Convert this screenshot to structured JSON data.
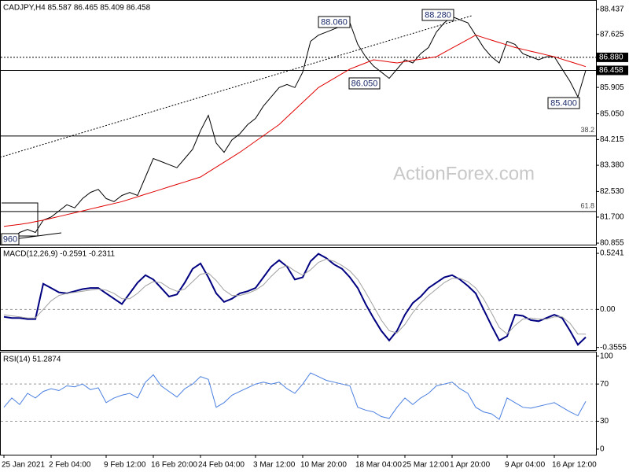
{
  "chart_data": [
    {
      "type": "line",
      "title": "CADJPY,H4  85.587 86.465 85.409 86.458",
      "watermark": "ActionForex.com",
      "categories": [
        "25 Jan 2021",
        null,
        null,
        null,
        null,
        null,
        "2 Feb 04:00",
        null,
        null,
        null,
        null,
        null,
        null,
        "9 Feb 12:00",
        null,
        null,
        null,
        null,
        null,
        "16 Feb 20:00",
        null,
        null,
        null,
        null,
        null,
        "24 Feb 04:00",
        null,
        null,
        null,
        null,
        null,
        null,
        "3 Mar 12:00",
        null,
        null,
        null,
        null,
        null,
        "10 Mar 20:00",
        null,
        null,
        null,
        null,
        null,
        null,
        "18 Mar 04:00",
        null,
        null,
        null,
        null,
        null,
        "25 Mar 12:00",
        null,
        null,
        null,
        null,
        null,
        "1 Apr 20:00",
        null,
        null,
        null,
        null,
        null,
        null,
        "9 Apr 04:00",
        null,
        null,
        null,
        null,
        null,
        "16 Apr 12:00",
        null,
        null,
        null,
        null
      ],
      "series": [
        {
          "color": "#000000",
          "values": [
            81.1,
            81.0,
            81.2,
            81.3,
            81.2,
            81.6,
            81.7,
            81.9,
            82.1,
            82.0,
            82.3,
            82.5,
            82.6,
            82.3,
            82.2,
            82.4,
            82.5,
            82.4,
            83.0,
            83.6,
            83.5,
            83.4,
            83.3,
            83.6,
            83.9,
            84.5,
            85.0,
            84.1,
            83.8,
            84.2,
            84.4,
            84.7,
            84.9,
            85.3,
            85.6,
            85.9,
            86.0,
            85.9,
            86.4,
            87.4,
            87.6,
            87.7,
            87.8,
            87.9,
            88.0,
            87.3,
            86.9,
            86.6,
            86.4,
            86.2,
            86.5,
            86.8,
            86.7,
            87.0,
            87.2,
            87.7,
            88.0,
            88.2,
            88.1,
            88.0,
            87.6,
            87.2,
            86.9,
            86.7,
            87.4,
            87.3,
            87.0,
            86.9,
            86.8,
            86.9,
            86.9,
            86.5,
            86.1,
            85.6,
            86.458
          ]
        },
        {
          "color": "#e00000",
          "values": [
            81.4,
            81.43,
            81.46,
            81.5,
            81.55,
            81.6,
            81.66,
            81.72,
            81.78,
            81.84,
            81.9,
            81.96,
            82.02,
            82.08,
            82.14,
            82.2,
            82.28,
            82.36,
            82.44,
            82.52,
            82.6,
            82.68,
            82.76,
            82.84,
            82.92,
            83.0,
            83.16,
            83.32,
            83.48,
            83.64,
            83.8,
            83.98,
            84.16,
            84.34,
            84.52,
            84.7,
            84.94,
            85.18,
            85.42,
            85.66,
            85.9,
            86.05,
            86.2,
            86.35,
            86.5,
            86.6,
            86.7,
            86.8,
            86.77,
            86.73,
            86.7,
            86.74,
            86.78,
            86.82,
            86.86,
            86.9,
            87.04,
            87.18,
            87.32,
            87.46,
            87.6,
            87.52,
            87.44,
            87.36,
            87.28,
            87.2,
            87.14,
            87.08,
            87.02,
            86.96,
            86.9,
            86.82,
            86.74,
            86.66,
            86.58
          ]
        }
      ],
      "ylim": [
        80.78,
        88.74
      ],
      "yticks": [
        88.437,
        87.625,
        85.905,
        {
          "value": 85.05,
          "label": "85.050"
        },
        84.215,
        {
          "value": 83.38,
          "label": "83.380"
        },
        {
          "value": 82.53,
          "label": "82.530"
        },
        {
          "value": 81.7,
          "label": "81.700"
        },
        80.855
      ],
      "grid": false,
      "levels": [
        {
          "value": 86.88,
          "label": "86.880",
          "style": "dotted",
          "label_box": true
        },
        {
          "value": 86.458,
          "label": "86.458",
          "style": "solid",
          "label_box": true
        },
        {
          "value": 84.33,
          "label": "38.2",
          "style": "solid",
          "label_box": false
        },
        {
          "value": 81.88,
          "label": "61.8",
          "style": "solid",
          "label_box": false
        }
      ],
      "annotations": [
        "88.060",
        "88.280",
        "86.050",
        "85.400",
        "960"
      ]
    },
    {
      "type": "line",
      "title": "MACD(12,26,9) -0.2591 -0.2311",
      "series": [
        {
          "color": "#000080",
          "values": [
            -0.07,
            -0.08,
            -0.08,
            -0.09,
            -0.09,
            0.24,
            0.2,
            0.16,
            0.15,
            0.17,
            0.19,
            0.2,
            0.2,
            0.15,
            0.1,
            0.05,
            0.15,
            0.25,
            0.32,
            0.28,
            0.2,
            0.12,
            0.14,
            0.25,
            0.38,
            0.43,
            0.3,
            0.15,
            0.07,
            0.1,
            0.15,
            0.17,
            0.2,
            0.3,
            0.4,
            0.46,
            0.4,
            0.28,
            0.3,
            0.45,
            0.52,
            0.48,
            0.42,
            0.38,
            0.3,
            0.2,
            0.05,
            -0.08,
            -0.2,
            -0.29,
            -0.2,
            -0.05,
            0.06,
            0.12,
            0.2,
            0.25,
            0.3,
            0.32,
            0.28,
            0.22,
            0.15,
            0.0,
            -0.15,
            -0.29,
            -0.25,
            -0.05,
            -0.06,
            -0.1,
            -0.11,
            -0.08,
            -0.05,
            -0.08,
            -0.2,
            -0.33,
            -0.2591
          ]
        },
        {
          "color": "#a0a0a0",
          "values": [
            -0.05,
            -0.06,
            -0.07,
            -0.08,
            -0.08,
            0.0,
            0.08,
            0.13,
            0.15,
            0.16,
            0.17,
            0.18,
            0.19,
            0.18,
            0.15,
            0.1,
            0.1,
            0.15,
            0.22,
            0.26,
            0.25,
            0.2,
            0.17,
            0.19,
            0.26,
            0.33,
            0.34,
            0.27,
            0.18,
            0.13,
            0.13,
            0.15,
            0.18,
            0.23,
            0.31,
            0.38,
            0.41,
            0.36,
            0.32,
            0.37,
            0.44,
            0.47,
            0.45,
            0.41,
            0.36,
            0.28,
            0.16,
            0.03,
            -0.1,
            -0.2,
            -0.22,
            -0.14,
            -0.03,
            0.06,
            0.13,
            0.19,
            0.25,
            0.29,
            0.29,
            0.26,
            0.2,
            0.1,
            -0.03,
            -0.17,
            -0.23,
            -0.15,
            -0.09,
            -0.08,
            -0.09,
            -0.09,
            -0.07,
            -0.07,
            -0.13,
            -0.23,
            -0.2311
          ]
        }
      ],
      "ylim": [
        -0.38,
        0.576
      ],
      "yticks": [
        0.5241,
        {
          "value": 0,
          "label": "0.00"
        },
        -0.3555
      ],
      "grid": true
    },
    {
      "type": "line",
      "title": "RSI(14) 51.2874",
      "series": [
        {
          "color": "#4a7fe0",
          "values": [
            45,
            55,
            48,
            60,
            55,
            62,
            65,
            63,
            68,
            67,
            70,
            64,
            66,
            50,
            55,
            58,
            60,
            55,
            72,
            80,
            68,
            62,
            56,
            65,
            70,
            78,
            75,
            45,
            50,
            58,
            62,
            66,
            70,
            72,
            70,
            72,
            65,
            60,
            70,
            82,
            78,
            74,
            72,
            70,
            68,
            45,
            42,
            40,
            35,
            33,
            45,
            55,
            48,
            55,
            60,
            68,
            70,
            72,
            65,
            60,
            45,
            40,
            38,
            32,
            55,
            50,
            45,
            44,
            46,
            48,
            50,
            45,
            40,
            36,
            51.2874
          ]
        }
      ],
      "ylim": [
        -6,
        104
      ],
      "yticks": [
        100,
        70,
        30,
        0
      ],
      "grid": true
    }
  ]
}
